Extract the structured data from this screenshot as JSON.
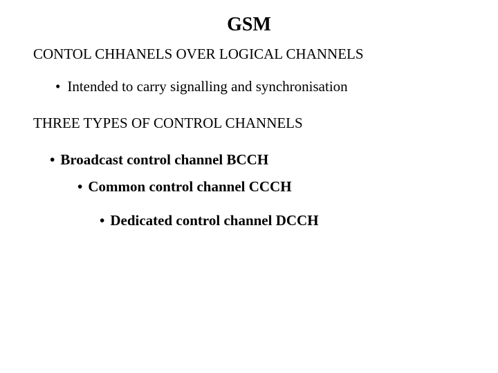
{
  "title": "GSM",
  "subtitle": "CONTOL CHHANELS OVER LOGICAL CHANNELS",
  "bullet1": "Intended to carry signalling and synchronisation",
  "section_heading": "THREE TYPES OF CONTROL CHANNELS",
  "item1": "Broadcast control channel  BCCH",
  "item2": "Common control channel CCCH",
  "item3": "Dedicated control channel DCCH",
  "style": {
    "background": "#ffffff",
    "text_color": "#000000",
    "font_family": "Times New Roman",
    "title_fontsize": 28,
    "body_fontsize": 21,
    "title_weight": "bold",
    "bullet_glyph": "•"
  }
}
